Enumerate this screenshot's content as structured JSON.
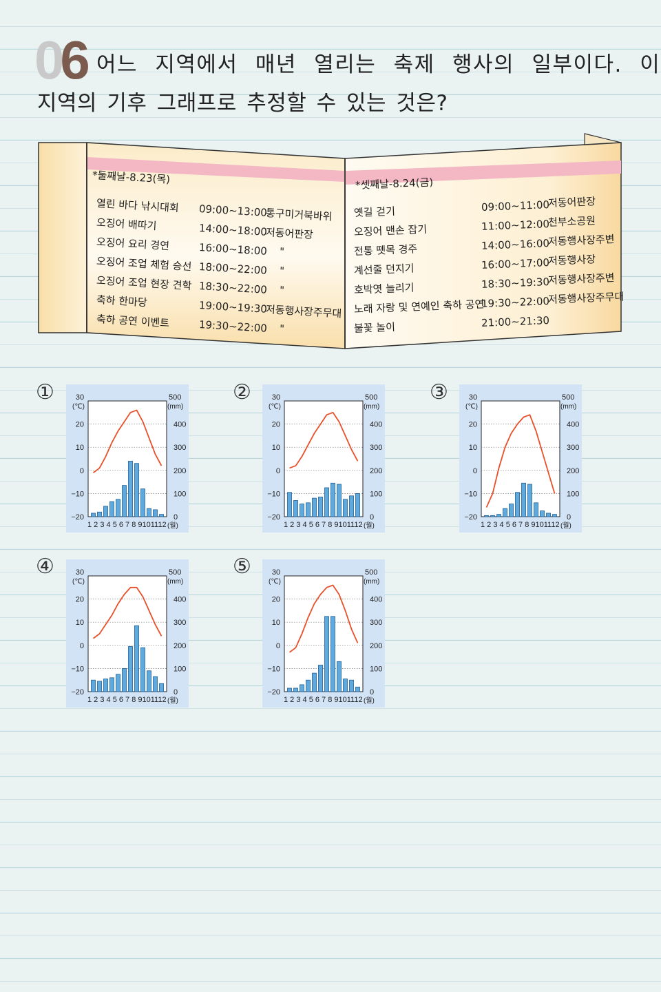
{
  "question": {
    "number_first_digit": "0",
    "number_second_digit": "6",
    "line1": "어느 지역에서 매년 열리는 축제 행사의 일부이다. 이",
    "line2": "지역의 기후 그래프로 추정할 수 있는 것은?"
  },
  "pamphlet": {
    "day2": {
      "heading": "*둘째날-8.23(목)",
      "events": [
        {
          "name": "열린 바다 낚시대회",
          "time": "09:00~13:00",
          "place": "통구미거북바위"
        },
        {
          "name": "오징어 배따기",
          "time": "14:00~18:00",
          "place": "저동어판장"
        },
        {
          "name": "오징어 요리 경연",
          "time": "16:00~18:00",
          "place": "\""
        },
        {
          "name": "오징어 조업 체험 승선",
          "time": "18:00~22:00",
          "place": "\""
        },
        {
          "name": "오징어 조업 현장 견학",
          "time": "18:30~22:00",
          "place": "\""
        },
        {
          "name": "축하 한마당",
          "time": "19:00~19:30",
          "place": "저동행사장주무대"
        },
        {
          "name": "축하 공연 이벤트",
          "time": "19:30~22:00",
          "place": "\""
        }
      ]
    },
    "day3": {
      "heading": "*셋째날-8.24(금)",
      "events": [
        {
          "name": "옛길 걷기",
          "time": "09:00~11:00",
          "place": "저동어판장"
        },
        {
          "name": "오징어 맨손 잡기",
          "time": "11:00~12:00",
          "place": "천부소공원"
        },
        {
          "name": "전통 뗏목 경주",
          "time": "14:00~16:00",
          "place": "저동행사장주변"
        },
        {
          "name": "계선줄 던지기",
          "time": "16:00~17:00",
          "place": "저동행사장"
        },
        {
          "name": "호박엿 늘리기",
          "time": "18:30~19:30",
          "place": "저동행사장주변"
        },
        {
          "name": "노래 자랑 및 연예인 축하 공연",
          "time": "19:30~22:00",
          "place": "저동행사장주무대"
        },
        {
          "name": "불꽃 놀이",
          "time": "21:00~21:30",
          "place": ""
        }
      ]
    }
  },
  "choices": [
    "①",
    "②",
    "③",
    "④",
    "⑤"
  ],
  "axis_labels": {
    "temp_top": "30",
    "temp_unit": "(℃)",
    "temp_ticks": [
      "20",
      "10",
      "0",
      "−10",
      "−20"
    ],
    "precip_top": "500",
    "precip_unit": "(mm)",
    "precip_ticks": [
      "400",
      "300",
      "200",
      "100",
      "0"
    ],
    "months": "1 2 3 4 5 6 7 8 9101112",
    "month_unit": "(월)"
  },
  "colors": {
    "temperature_line": "#e8502a",
    "precip_bar": "#5fa9dd",
    "chart_bg": "#d3e3f6",
    "pamphlet_band": "#f3b8c4"
  },
  "chart_data": [
    {
      "type": "bar",
      "title": "①",
      "x": [
        1,
        2,
        3,
        4,
        5,
        6,
        7,
        8,
        9,
        10,
        11,
        12
      ],
      "temperature": [
        -1,
        1,
        6,
        12,
        17,
        21,
        25,
        26,
        21,
        14,
        7,
        2
      ],
      "precipitation": [
        15,
        20,
        45,
        65,
        75,
        135,
        240,
        230,
        120,
        35,
        30,
        10
      ],
      "ylim_temp": [
        -20,
        30
      ],
      "ylim_precip": [
        0,
        500
      ]
    },
    {
      "type": "bar",
      "title": "②",
      "x": [
        1,
        2,
        3,
        4,
        5,
        6,
        7,
        8,
        9,
        10,
        11,
        12
      ],
      "temperature": [
        1,
        2,
        6,
        11,
        16,
        20,
        24,
        25,
        21,
        15,
        9,
        4
      ],
      "precipitation": [
        105,
        70,
        55,
        60,
        80,
        85,
        125,
        145,
        140,
        75,
        90,
        100
      ],
      "ylim_temp": [
        -20,
        30
      ],
      "ylim_precip": [
        0,
        500
      ]
    },
    {
      "type": "bar",
      "title": "③",
      "x": [
        1,
        2,
        3,
        4,
        5,
        6,
        7,
        8,
        9,
        10,
        11,
        12
      ],
      "temperature": [
        -16,
        -10,
        1,
        10,
        16,
        20,
        23,
        24,
        17,
        8,
        -1,
        -10
      ],
      "precipitation": [
        5,
        5,
        10,
        35,
        55,
        105,
        145,
        140,
        60,
        25,
        15,
        10
      ],
      "ylim_temp": [
        -20,
        30
      ],
      "ylim_precip": [
        0,
        500
      ]
    },
    {
      "type": "bar",
      "title": "④",
      "x": [
        1,
        2,
        3,
        4,
        5,
        6,
        7,
        8,
        9,
        10,
        11,
        12
      ],
      "temperature": [
        3,
        5,
        9,
        13,
        18,
        22,
        25,
        25,
        21,
        15,
        9,
        4
      ],
      "precipitation": [
        50,
        45,
        55,
        60,
        75,
        100,
        195,
        285,
        190,
        90,
        65,
        35
      ],
      "ylim_temp": [
        -20,
        30
      ],
      "ylim_precip": [
        0,
        500
      ]
    },
    {
      "type": "bar",
      "title": "⑤",
      "x": [
        1,
        2,
        3,
        4,
        5,
        6,
        7,
        8,
        9,
        10,
        11,
        12
      ],
      "temperature": [
        -3,
        -1,
        5,
        12,
        18,
        22,
        25,
        26,
        22,
        15,
        7,
        1
      ],
      "precipitation": [
        15,
        15,
        30,
        50,
        80,
        115,
        325,
        325,
        130,
        55,
        50,
        20
      ],
      "ylim_temp": [
        -20,
        30
      ],
      "ylim_precip": [
        0,
        500
      ]
    }
  ]
}
